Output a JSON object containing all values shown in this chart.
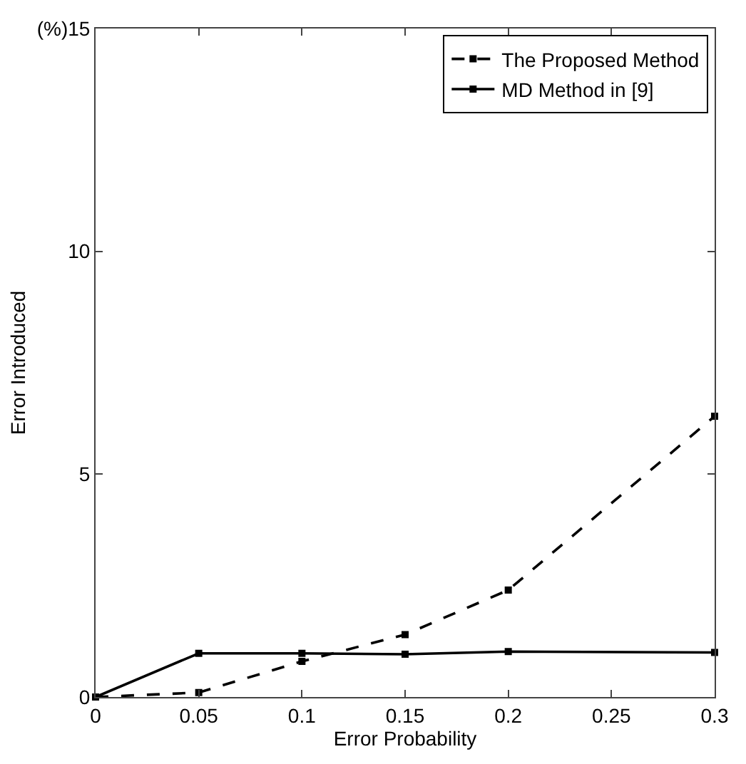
{
  "chart_data": {
    "type": "line",
    "xlabel": "Error Probability",
    "ylabel": "Error Introduced",
    "x": [
      0,
      0.05,
      0.1,
      0.15,
      0.2,
      0.3
    ],
    "series": [
      {
        "name": "The Proposed Method",
        "color": "#000000",
        "line_style": "dashed",
        "values": [
          0,
          0.1,
          0.8,
          1.4,
          2.4,
          6.3
        ]
      },
      {
        "name": "MD Method in [9]",
        "color": "#000000",
        "line_style": "solid",
        "values": [
          0,
          0.98,
          0.98,
          0.96,
          1.02,
          1.0
        ]
      }
    ],
    "xlim": [
      0,
      0.3
    ],
    "xticks": [
      0,
      0.05,
      0.1,
      0.15,
      0.2,
      0.25,
      0.3
    ],
    "ylim": [
      0,
      15
    ],
    "yticks": [
      0,
      5,
      10,
      {
        "value": 15,
        "label": "(%)15"
      }
    ],
    "grid": false,
    "legend": "top right",
    "marker": "square"
  }
}
